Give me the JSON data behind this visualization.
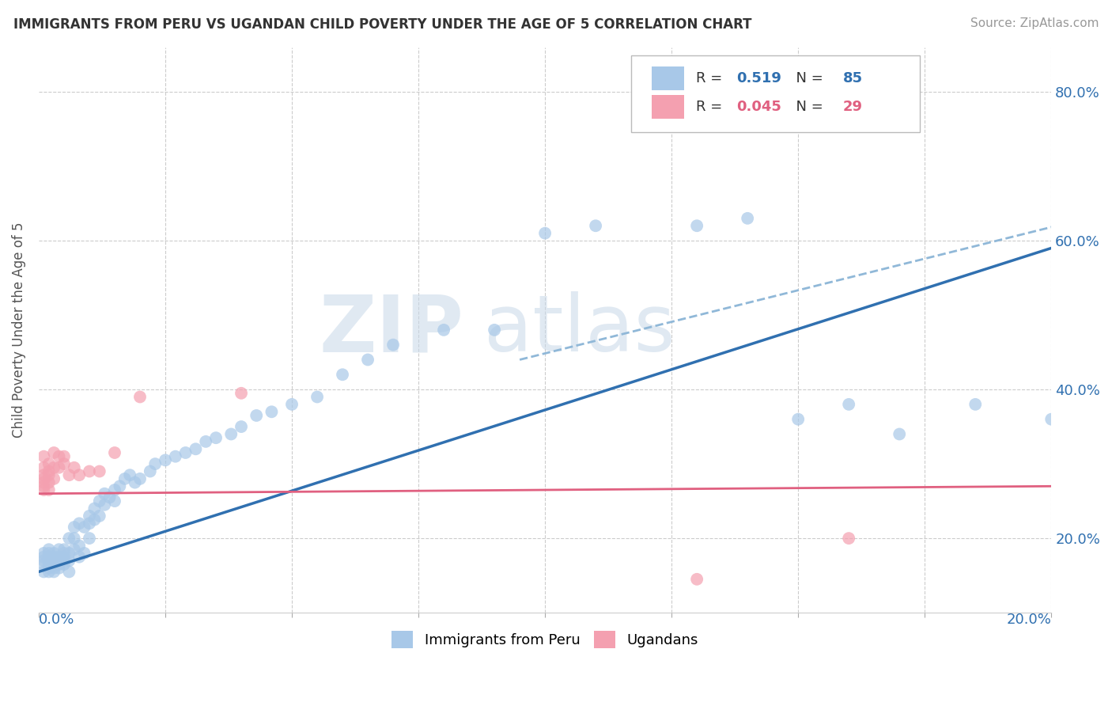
{
  "title": "IMMIGRANTS FROM PERU VS UGANDAN CHILD POVERTY UNDER THE AGE OF 5 CORRELATION CHART",
  "source": "Source: ZipAtlas.com",
  "ylabel": "Child Poverty Under the Age of 5",
  "legend_blue_label": "Immigrants from Peru",
  "legend_pink_label": "Ugandans",
  "legend_blue_r_val": "0.519",
  "legend_blue_n_val": "85",
  "legend_pink_r_val": "0.045",
  "legend_pink_n_val": "29",
  "blue_color": "#a8c8e8",
  "pink_color": "#f4a0b0",
  "blue_line_color": "#3070b0",
  "pink_line_color": "#e06080",
  "dashed_line_color": "#90b8d8",
  "watermark_zip": "ZIP",
  "watermark_atlas": "atlas",
  "xlim": [
    0.0,
    0.2
  ],
  "ylim": [
    0.1,
    0.86
  ],
  "ytick_vals": [
    0.2,
    0.4,
    0.6,
    0.8
  ],
  "blue_points_x": [
    0.001,
    0.001,
    0.001,
    0.001,
    0.001,
    0.002,
    0.002,
    0.002,
    0.002,
    0.002,
    0.002,
    0.002,
    0.003,
    0.003,
    0.003,
    0.003,
    0.003,
    0.003,
    0.004,
    0.004,
    0.004,
    0.004,
    0.004,
    0.005,
    0.005,
    0.005,
    0.005,
    0.005,
    0.006,
    0.006,
    0.006,
    0.006,
    0.007,
    0.007,
    0.007,
    0.008,
    0.008,
    0.008,
    0.009,
    0.009,
    0.01,
    0.01,
    0.01,
    0.011,
    0.011,
    0.012,
    0.012,
    0.013,
    0.013,
    0.014,
    0.015,
    0.015,
    0.016,
    0.017,
    0.018,
    0.019,
    0.02,
    0.022,
    0.023,
    0.025,
    0.027,
    0.029,
    0.031,
    0.033,
    0.035,
    0.038,
    0.04,
    0.043,
    0.046,
    0.05,
    0.055,
    0.06,
    0.065,
    0.07,
    0.08,
    0.09,
    0.1,
    0.11,
    0.13,
    0.14,
    0.15,
    0.16,
    0.17,
    0.185,
    0.2
  ],
  "blue_points_y": [
    0.165,
    0.17,
    0.175,
    0.18,
    0.155,
    0.165,
    0.17,
    0.175,
    0.18,
    0.155,
    0.16,
    0.185,
    0.16,
    0.165,
    0.17,
    0.175,
    0.18,
    0.155,
    0.165,
    0.17,
    0.175,
    0.185,
    0.16,
    0.17,
    0.175,
    0.18,
    0.185,
    0.165,
    0.17,
    0.2,
    0.18,
    0.155,
    0.185,
    0.2,
    0.215,
    0.175,
    0.19,
    0.22,
    0.18,
    0.215,
    0.2,
    0.22,
    0.23,
    0.225,
    0.24,
    0.23,
    0.25,
    0.245,
    0.26,
    0.255,
    0.25,
    0.265,
    0.27,
    0.28,
    0.285,
    0.275,
    0.28,
    0.29,
    0.3,
    0.305,
    0.31,
    0.315,
    0.32,
    0.33,
    0.335,
    0.34,
    0.35,
    0.365,
    0.37,
    0.38,
    0.39,
    0.42,
    0.44,
    0.46,
    0.48,
    0.48,
    0.61,
    0.62,
    0.62,
    0.63,
    0.36,
    0.38,
    0.34,
    0.38,
    0.36
  ],
  "pink_points_x": [
    0.001,
    0.001,
    0.001,
    0.001,
    0.001,
    0.001,
    0.001,
    0.002,
    0.002,
    0.002,
    0.002,
    0.002,
    0.003,
    0.003,
    0.003,
    0.004,
    0.004,
    0.005,
    0.005,
    0.006,
    0.007,
    0.008,
    0.01,
    0.012,
    0.015,
    0.02,
    0.04,
    0.13,
    0.16
  ],
  "pink_points_y": [
    0.285,
    0.275,
    0.295,
    0.265,
    0.31,
    0.27,
    0.28,
    0.29,
    0.3,
    0.275,
    0.285,
    0.265,
    0.295,
    0.315,
    0.28,
    0.31,
    0.295,
    0.3,
    0.31,
    0.285,
    0.295,
    0.285,
    0.29,
    0.29,
    0.315,
    0.39,
    0.395,
    0.145,
    0.2
  ],
  "blue_trend": [
    0.0,
    0.2,
    0.155,
    0.59
  ],
  "dashed_trend": [
    0.095,
    0.26,
    0.44,
    0.72
  ],
  "pink_trend": [
    0.0,
    0.2,
    0.26,
    0.27
  ]
}
